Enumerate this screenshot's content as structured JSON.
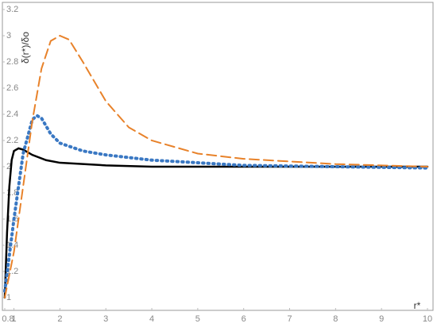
{
  "chart_data": {
    "type": "line",
    "x_label": "r*",
    "y_label": "δ(r*)/δo",
    "xlim": [
      0.8,
      10
    ],
    "xticks": [
      0.8,
      1,
      2,
      3,
      4,
      5,
      6,
      7,
      8,
      9,
      10
    ],
    "ylim": [
      1,
      3.2
    ],
    "yticks": [
      1,
      1.2,
      1.4,
      1.6,
      1.8,
      2,
      2.2,
      2.4,
      2.6,
      2.8,
      3,
      3.2
    ],
    "series": [
      {
        "color": "#000000",
        "style": "solid",
        "x": [
          0.8,
          0.85,
          0.9,
          0.95,
          1,
          1.1,
          1.2,
          1.4,
          1.7,
          2,
          3,
          4,
          6,
          8,
          10
        ],
        "values": [
          1.0,
          1.5,
          1.85,
          2.05,
          2.12,
          2.14,
          2.13,
          2.09,
          2.05,
          2.03,
          2.01,
          2.0,
          2.0,
          2.0,
          2.0
        ]
      },
      {
        "color": "#3a78c3",
        "style": "dotted",
        "x": [
          0.8,
          1,
          1.2,
          1.4,
          1.5,
          1.6,
          1.8,
          2,
          2.5,
          3,
          4,
          5,
          6,
          8,
          10
        ],
        "values": [
          1.05,
          1.6,
          2.1,
          2.36,
          2.39,
          2.37,
          2.25,
          2.18,
          2.12,
          2.09,
          2.05,
          2.03,
          2.01,
          2.0,
          1.99
        ]
      },
      {
        "color": "#e8822a",
        "style": "dashed",
        "x": [
          0.8,
          1,
          1.2,
          1.4,
          1.6,
          1.8,
          2,
          2.2,
          2.5,
          3,
          3.5,
          4,
          5,
          6,
          7,
          8,
          10
        ],
        "values": [
          1.0,
          1.35,
          1.85,
          2.35,
          2.75,
          2.96,
          3.0,
          2.97,
          2.8,
          2.5,
          2.3,
          2.2,
          2.1,
          2.06,
          2.04,
          2.02,
          2.0
        ]
      }
    ]
  }
}
